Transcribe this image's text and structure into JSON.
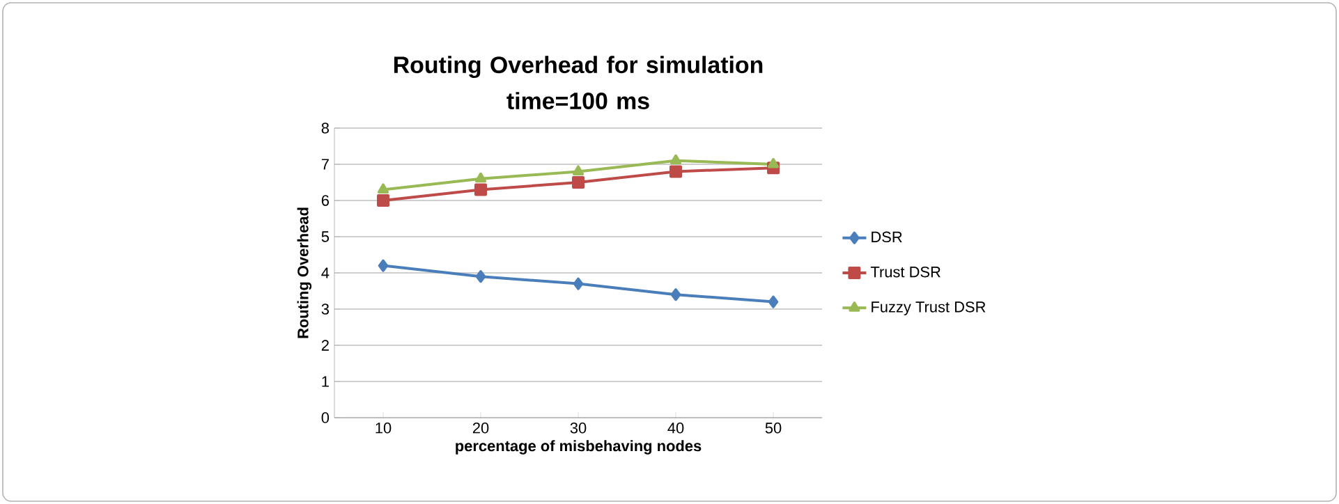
{
  "chart_data": {
    "type": "line",
    "title": "Routing Overhead for simulation\ntime=100 ms",
    "xlabel": "percentage of misbehaving nodes",
    "ylabel": "Routing Overhead",
    "categories": [
      "10",
      "20",
      "30",
      "40",
      "50"
    ],
    "series": [
      {
        "name": "DSR",
        "color": "#4a7ebb",
        "marker": "diamond",
        "values": [
          4.2,
          3.9,
          3.7,
          3.4,
          3.2
        ]
      },
      {
        "name": "Trust DSR",
        "color": "#be4b48",
        "marker": "square",
        "values": [
          6.0,
          6.3,
          6.5,
          6.8,
          6.9
        ]
      },
      {
        "name": "Fuzzy Trust DSR",
        "color": "#98b954",
        "marker": "triangle",
        "values": [
          6.3,
          6.6,
          6.8,
          7.1,
          7.0
        ]
      }
    ],
    "ylim": [
      0,
      8
    ],
    "yticks": [
      0,
      1,
      2,
      3,
      4,
      5,
      6,
      7,
      8
    ],
    "grid": "y",
    "legend": "right",
    "line_style": "solid"
  }
}
